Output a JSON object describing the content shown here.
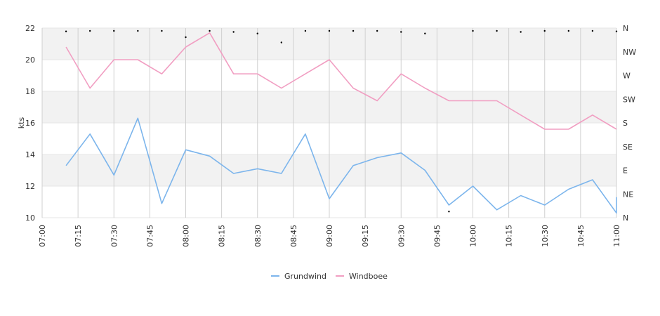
{
  "chart_data": {
    "type": "line",
    "ylabel": "kts",
    "ylim": [
      10,
      22
    ],
    "y_ticks": [
      "10",
      "12",
      "14",
      "16",
      "18",
      "20",
      "22"
    ],
    "x_ticks": [
      "07:00",
      "07:15",
      "07:30",
      "07:45",
      "08:00",
      "08:15",
      "08:30",
      "08:45",
      "09:00",
      "09:15",
      "09:30",
      "09:45",
      "10:00",
      "10:15",
      "10:30",
      "10:45",
      "11:00"
    ],
    "xlim": [
      "07:00",
      "11:00"
    ],
    "direction_axis": [
      "N",
      "NW",
      "W",
      "SW",
      "S",
      "SE",
      "E",
      "NE",
      "N"
    ],
    "grid": true,
    "legend_position": "bottom",
    "colors": {
      "grundwind": "#7cb5ec",
      "windboee": "#f19ec2",
      "band": "#f2f2f2",
      "grid": "#d0d0d0"
    },
    "series": [
      {
        "name": "Grundwind",
        "color": "#7cb5ec",
        "x": [
          "07:10",
          "07:20",
          "07:30",
          "07:40",
          "07:50",
          "08:00",
          "08:10",
          "08:20",
          "08:30",
          "08:40",
          "08:50",
          "09:00",
          "09:10",
          "09:20",
          "09:30",
          "09:40",
          "09:50",
          "10:00",
          "10:10",
          "10:20",
          "10:30",
          "10:40",
          "10:50",
          "11:00",
          "11:00"
        ],
        "values": [
          13.3,
          15.3,
          12.7,
          16.3,
          10.9,
          14.3,
          13.9,
          12.8,
          13.1,
          12.8,
          15.3,
          11.2,
          13.3,
          13.8,
          14.1,
          13.0,
          10.8,
          12.0,
          10.5,
          11.4,
          10.8,
          11.8,
          12.4,
          10.3,
          11.3
        ]
      },
      {
        "name": "Windboee",
        "color": "#f19ec2",
        "x": [
          "07:10",
          "07:20",
          "07:30",
          "07:40",
          "07:50",
          "08:00",
          "08:10",
          "08:20",
          "08:30",
          "08:40",
          "08:50",
          "09:00",
          "09:10",
          "09:20",
          "09:30",
          "09:40",
          "09:50",
          "10:00",
          "10:10",
          "10:20",
          "10:30",
          "10:40",
          "10:50",
          "11:00"
        ],
        "values": [
          20.8,
          18.2,
          20.0,
          20.0,
          19.1,
          20.8,
          21.7,
          19.1,
          19.1,
          18.2,
          19.1,
          20.0,
          18.2,
          17.4,
          19.1,
          18.2,
          17.4,
          17.4,
          17.4,
          16.5,
          15.6,
          15.6,
          16.5,
          15.6
        ]
      }
    ],
    "direction_points": {
      "x": [
        "07:10",
        "07:20",
        "07:30",
        "07:40",
        "07:50",
        "08:00",
        "08:10",
        "08:20",
        "08:30",
        "08:40",
        "08:50",
        "09:00",
        "09:10",
        "09:20",
        "09:30",
        "09:40",
        "09:50",
        "10:00",
        "10:10",
        "10:20",
        "10:30",
        "10:40",
        "10:50",
        "11:00"
      ],
      "values": [
        359,
        360,
        360,
        360,
        360,
        348,
        360,
        358,
        355,
        338,
        360,
        360,
        360,
        360,
        358,
        355,
        17,
        360,
        360,
        358,
        360,
        360,
        360,
        359
      ]
    }
  }
}
